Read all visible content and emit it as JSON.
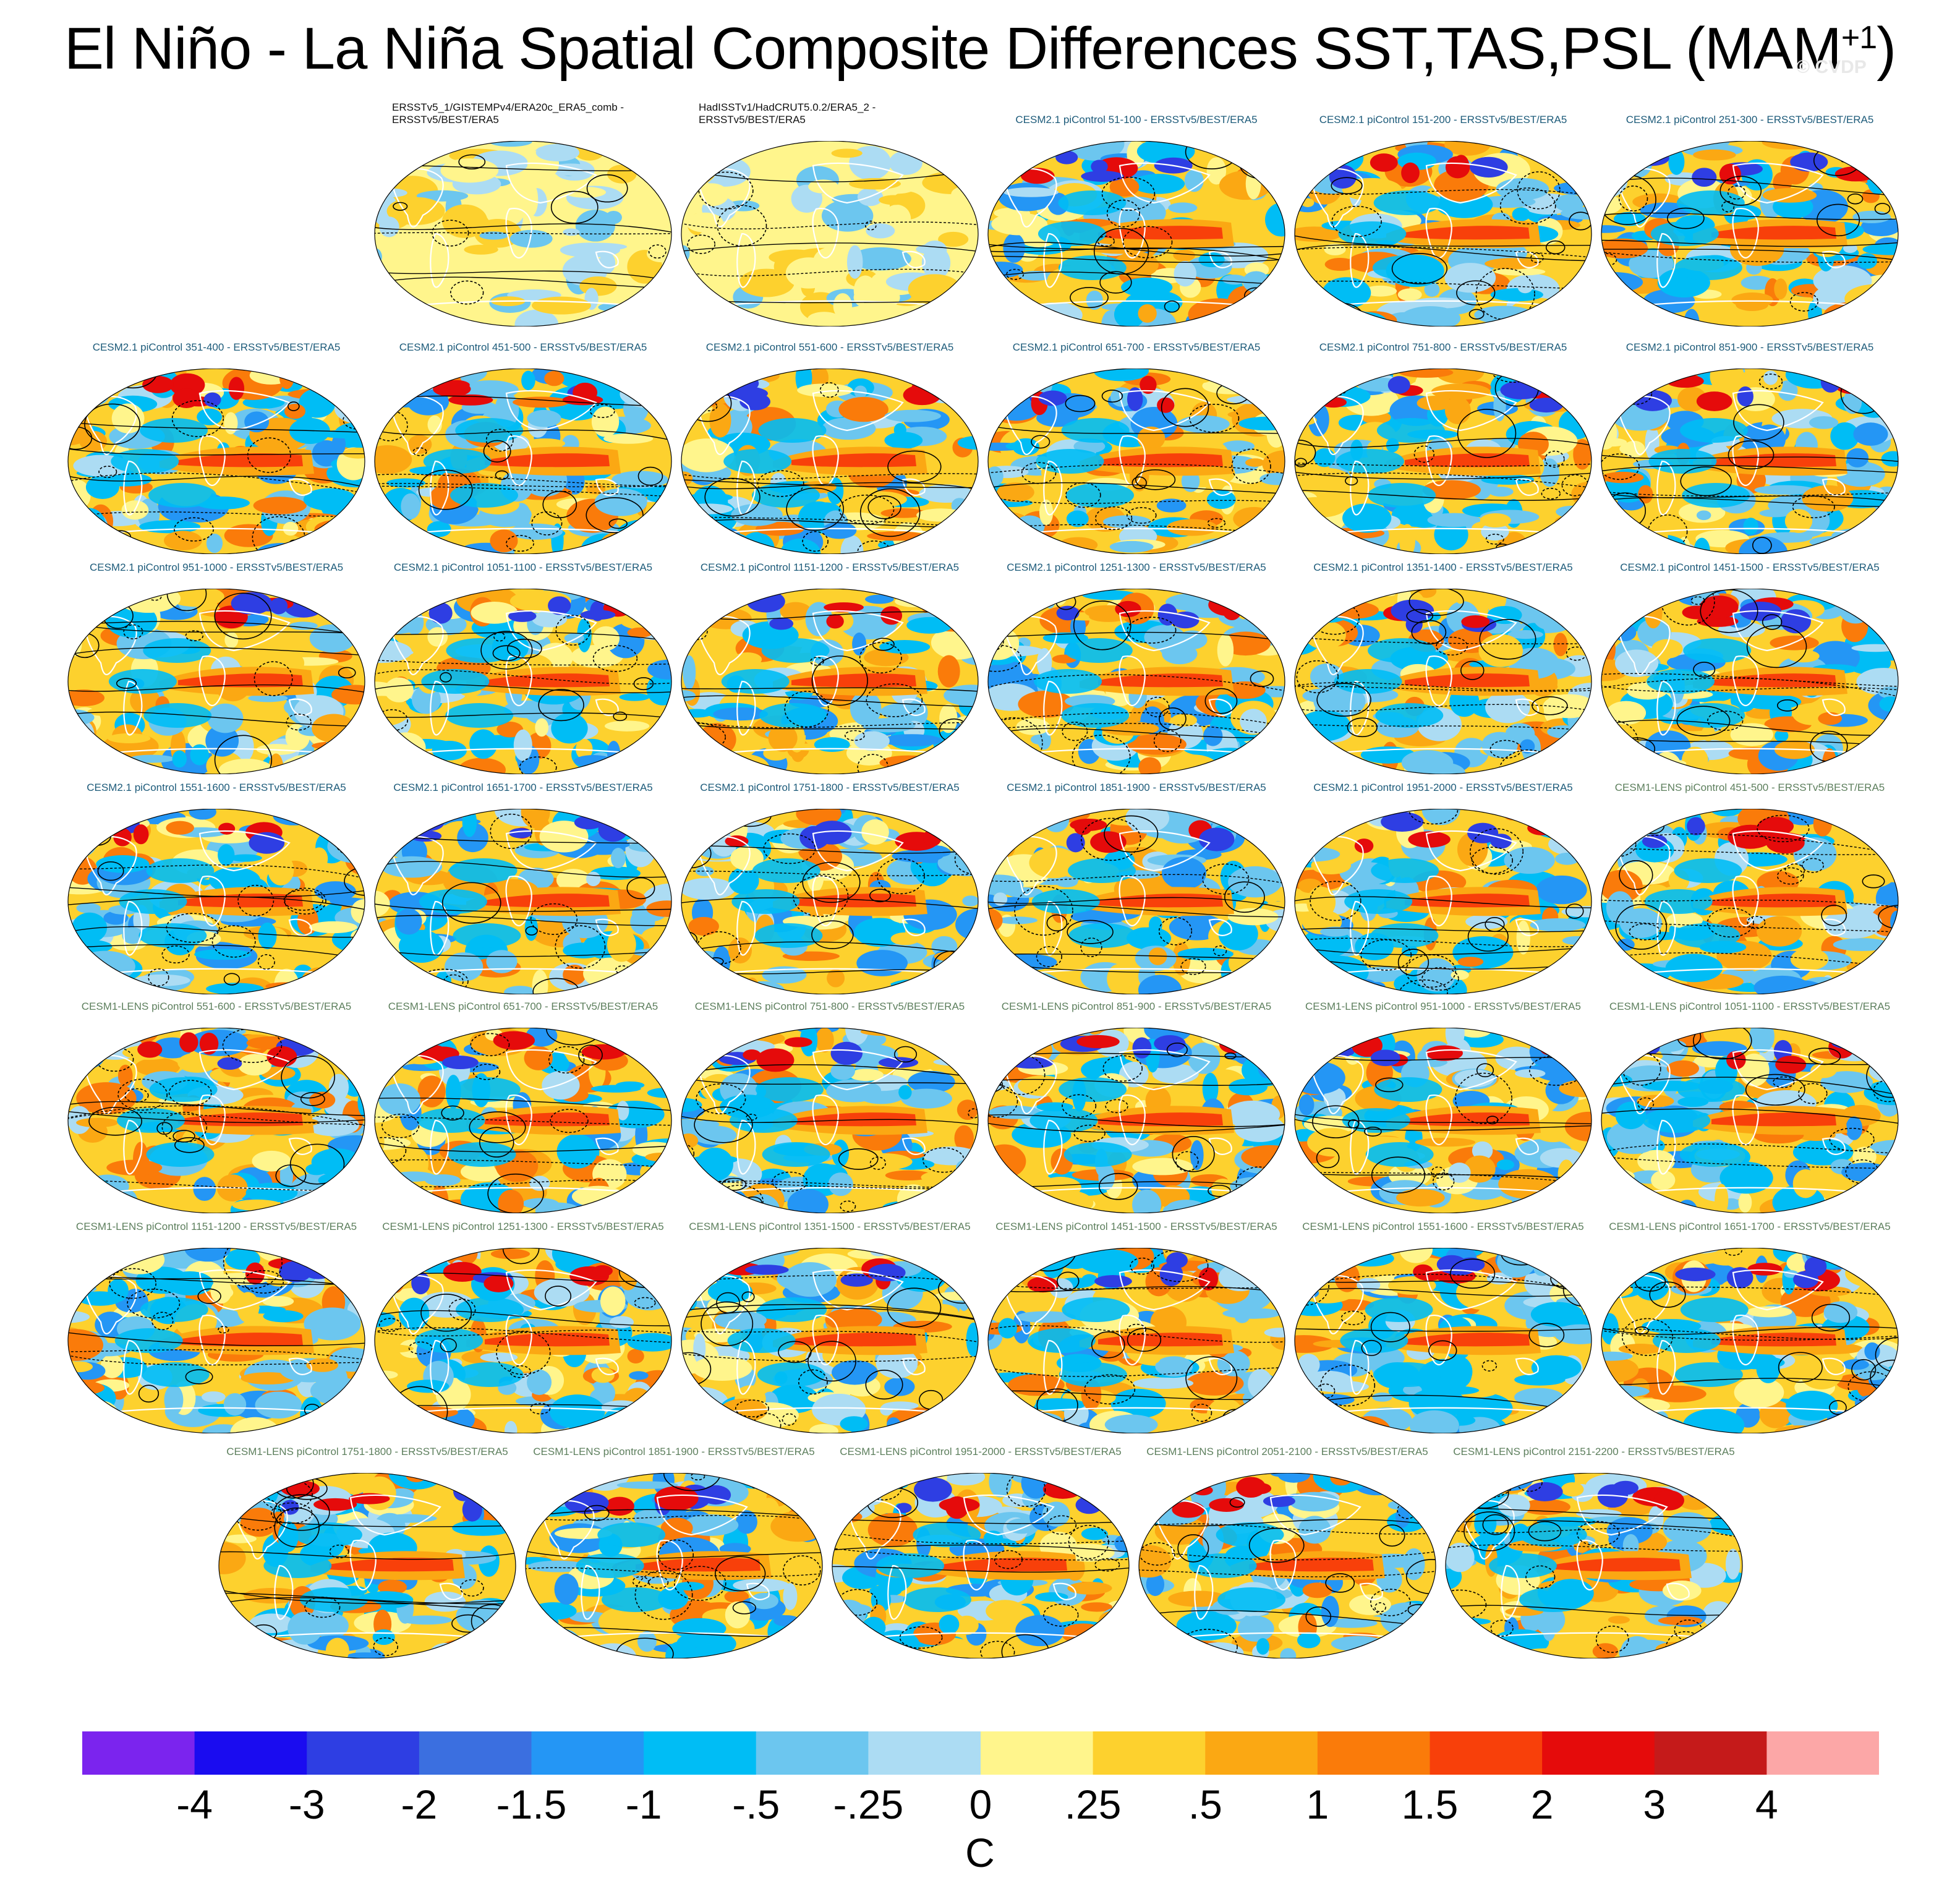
{
  "title": {
    "main": "El Niño - La Niña Spatial Composite Differences SST,TAS,PSL (MAM",
    "superscript": "+1",
    "close": ")"
  },
  "watermark": "© CVDP",
  "map_type": "global robinson-projection maps; filled contours of SST/TAS difference, black line contours of PSL (dashed negative)",
  "panels": [
    {
      "label": "ERSSTv5_1/GISTEMPv4/ERA20c_ERA5_comb -\nERSSTv5/BEST/ERA5",
      "group": "obs"
    },
    {
      "label": "HadISSTv1/HadCRUT5.0.2/ERA5_2 -\nERSSTv5/BEST/ERA5",
      "group": "obs"
    },
    {
      "label": "CESM2.1 piControl 51-100 - ERSSTv5/BEST/ERA5",
      "group": "cesm2"
    },
    {
      "label": "CESM2.1 piControl 151-200 - ERSSTv5/BEST/ERA5",
      "group": "cesm2"
    },
    {
      "label": "CESM2.1 piControl 251-300 - ERSSTv5/BEST/ERA5",
      "group": "cesm2"
    },
    {
      "label": "CESM2.1 piControl 351-400 - ERSSTv5/BEST/ERA5",
      "group": "cesm2"
    },
    {
      "label": "CESM2.1 piControl 451-500 - ERSSTv5/BEST/ERA5",
      "group": "cesm2"
    },
    {
      "label": "CESM2.1 piControl 551-600 - ERSSTv5/BEST/ERA5",
      "group": "cesm2"
    },
    {
      "label": "CESM2.1 piControl 651-700 - ERSSTv5/BEST/ERA5",
      "group": "cesm2"
    },
    {
      "label": "CESM2.1 piControl 751-800 - ERSSTv5/BEST/ERA5",
      "group": "cesm2"
    },
    {
      "label": "CESM2.1 piControl 851-900 - ERSSTv5/BEST/ERA5",
      "group": "cesm2"
    },
    {
      "label": "CESM2.1 piControl 951-1000 - ERSSTv5/BEST/ERA5",
      "group": "cesm2"
    },
    {
      "label": "CESM2.1 piControl 1051-1100 - ERSSTv5/BEST/ERA5",
      "group": "cesm2"
    },
    {
      "label": "CESM2.1 piControl 1151-1200 - ERSSTv5/BEST/ERA5",
      "group": "cesm2"
    },
    {
      "label": "CESM2.1 piControl 1251-1300 - ERSSTv5/BEST/ERA5",
      "group": "cesm2"
    },
    {
      "label": "CESM2.1 piControl 1351-1400 - ERSSTv5/BEST/ERA5",
      "group": "cesm2"
    },
    {
      "label": "CESM2.1 piControl 1451-1500 - ERSSTv5/BEST/ERA5",
      "group": "cesm2"
    },
    {
      "label": "CESM2.1 piControl 1551-1600 - ERSSTv5/BEST/ERA5",
      "group": "cesm2"
    },
    {
      "label": "CESM2.1 piControl 1651-1700 - ERSSTv5/BEST/ERA5",
      "group": "cesm2"
    },
    {
      "label": "CESM2.1 piControl 1751-1800 - ERSSTv5/BEST/ERA5",
      "group": "cesm2"
    },
    {
      "label": "CESM2.1 piControl 1851-1900 - ERSSTv5/BEST/ERA5",
      "group": "cesm2"
    },
    {
      "label": "CESM2.1 piControl 1951-2000 - ERSSTv5/BEST/ERA5",
      "group": "cesm2"
    },
    {
      "label": "CESM1-LENS piControl 451-500 - ERSSTv5/BEST/ERA5",
      "group": "lens"
    },
    {
      "label": "CESM1-LENS piControl 551-600 - ERSSTv5/BEST/ERA5",
      "group": "lens"
    },
    {
      "label": "CESM1-LENS piControl 651-700 - ERSSTv5/BEST/ERA5",
      "group": "lens"
    },
    {
      "label": "CESM1-LENS piControl 751-800 - ERSSTv5/BEST/ERA5",
      "group": "lens"
    },
    {
      "label": "CESM1-LENS piControl 851-900 - ERSSTv5/BEST/ERA5",
      "group": "lens"
    },
    {
      "label": "CESM1-LENS piControl 951-1000 - ERSSTv5/BEST/ERA5",
      "group": "lens"
    },
    {
      "label": "CESM1-LENS piControl 1051-1100 - ERSSTv5/BEST/ERA5",
      "group": "lens"
    },
    {
      "label": "CESM1-LENS piControl 1151-1200 - ERSSTv5/BEST/ERA5",
      "group": "lens"
    },
    {
      "label": "CESM1-LENS piControl 1251-1300 - ERSSTv5/BEST/ERA5",
      "group": "lens"
    },
    {
      "label": "CESM1-LENS piControl 1351-1500 - ERSSTv5/BEST/ERA5",
      "group": "lens"
    },
    {
      "label": "CESM1-LENS piControl 1451-1500 - ERSSTv5/BEST/ERA5",
      "group": "lens"
    },
    {
      "label": "CESM1-LENS piControl 1551-1600 - ERSSTv5/BEST/ERA5",
      "group": "lens"
    },
    {
      "label": "CESM1-LENS piControl 1651-1700 - ERSSTv5/BEST/ERA5",
      "group": "lens"
    },
    {
      "label": "CESM1-LENS piControl 1751-1800 - ERSSTv5/BEST/ERA5",
      "group": "lens"
    },
    {
      "label": "CESM1-LENS piControl 1851-1900 - ERSSTv5/BEST/ERA5",
      "group": "lens"
    },
    {
      "label": "CESM1-LENS piControl 1951-2000 - ERSSTv5/BEST/ERA5",
      "group": "lens"
    },
    {
      "label": "CESM1-LENS piControl 2051-2100 - ERSSTv5/BEST/ERA5",
      "group": "lens"
    },
    {
      "label": "CESM1-LENS piControl 2151-2200 - ERSSTv5/BEST/ERA5",
      "group": "lens"
    }
  ],
  "colorbar": {
    "units": "C",
    "tick_labels": [
      "-4",
      "-3",
      "-2",
      "-1.5",
      "-1",
      "-.5",
      "-.25",
      "0",
      ".25",
      ".5",
      "1",
      "1.5",
      "2",
      "3",
      "4"
    ],
    "colors": [
      "#7b24ee",
      "#1a0cf0",
      "#2e3ee3",
      "#3b6fe0",
      "#2496f5",
      "#00bdf5",
      "#6cc6ef",
      "#acdcf3",
      "#fff58c",
      "#fdd12e",
      "#fba813",
      "#fa7b0a",
      "#f8400a",
      "#e50b0b",
      "#c51a1a",
      "#fca7a7"
    ]
  }
}
